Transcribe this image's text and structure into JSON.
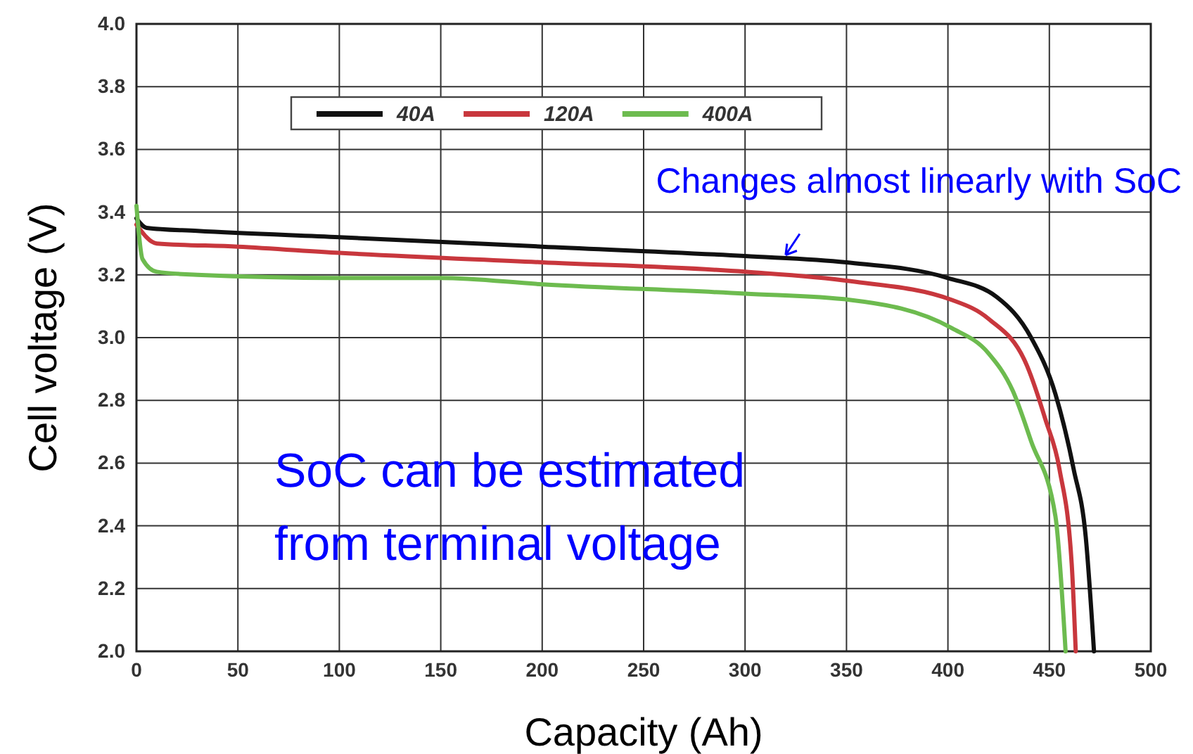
{
  "chart_data": {
    "type": "line",
    "xlabel": "Capacity (Ah)",
    "ylabel": "Cell voltage (V)",
    "xlim": [
      0,
      500
    ],
    "xticks": [
      0,
      50,
      100,
      150,
      200,
      250,
      300,
      350,
      400,
      450,
      500
    ],
    "ylim": [
      2.0,
      4.0
    ],
    "yticks": [
      {
        "value": 2.0,
        "label": "2.0"
      },
      {
        "value": 2.2,
        "label": "2.2"
      },
      {
        "value": 2.4,
        "label": "2.4"
      },
      {
        "value": 2.6,
        "label": "2.6"
      },
      {
        "value": 2.8,
        "label": "2.8"
      },
      {
        "value": 3.0,
        "label": "3.0"
      },
      {
        "value": 3.2,
        "label": "3.2"
      },
      {
        "value": 3.4,
        "label": "3.4"
      },
      {
        "value": 3.6,
        "label": "3.6"
      },
      {
        "value": 3.8,
        "label": "3.8"
      },
      {
        "value": 4.0,
        "label": "4.0"
      }
    ],
    "grid": true,
    "legend": "top left",
    "line_style": "solid",
    "marker": "none",
    "series": [
      {
        "name": "40A",
        "color": "#111111",
        "x": [
          0,
          5,
          30,
          100,
          200,
          300,
          350,
          400,
          424,
          441,
          453,
          462,
          468,
          472
        ],
        "values": [
          3.38,
          3.35,
          3.34,
          3.32,
          3.29,
          3.26,
          3.24,
          3.19,
          3.13,
          3.0,
          2.82,
          2.58,
          2.36,
          2.0
        ]
      },
      {
        "name": "120A",
        "color": "#c8373d",
        "x": [
          0,
          10,
          50,
          100,
          200,
          300,
          352,
          402,
          420,
          439,
          448,
          455,
          461,
          463
        ],
        "values": [
          3.36,
          3.3,
          3.29,
          3.27,
          3.24,
          3.21,
          3.18,
          3.12,
          3.06,
          2.91,
          2.74,
          2.58,
          2.28,
          2.0
        ]
      },
      {
        "name": "400A",
        "color": "#6dbb4f",
        "x": [
          0,
          3,
          10,
          30,
          100,
          150,
          200,
          300,
          352,
          402,
          420,
          432,
          441,
          453,
          458
        ],
        "values": [
          3.42,
          3.25,
          3.21,
          3.2,
          3.19,
          3.19,
          3.17,
          3.14,
          3.12,
          3.03,
          2.95,
          2.83,
          2.67,
          2.43,
          2.0
        ]
      }
    ],
    "annotations": [
      {
        "text": "Changes almost linearly with SoC",
        "x": 320,
        "y": 3.25
      },
      "SoC can be estimated\nfrom terminal voltage"
    ]
  }
}
